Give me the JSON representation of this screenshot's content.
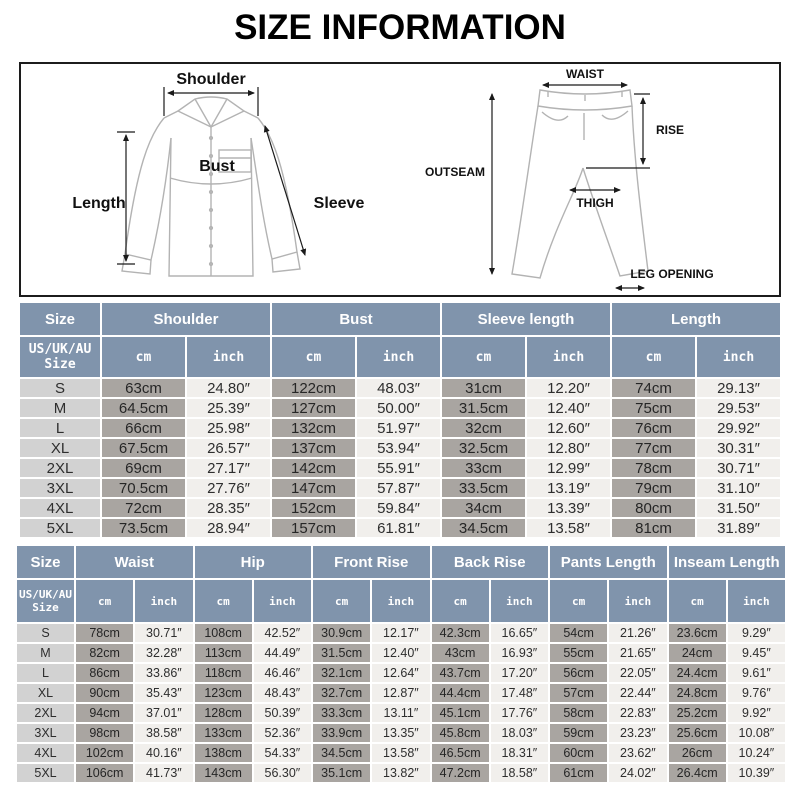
{
  "title": "SIZE INFORMATION",
  "diagram": {
    "shirt": {
      "shoulder": "Shoulder",
      "length": "Length",
      "bust": "Bust",
      "sleeve": "Sleeve"
    },
    "pants": {
      "waist": "WAIST",
      "rise": "RISE",
      "outseam": "OUTSEAM",
      "thigh": "THIGH",
      "leg_opening": "LEG OPENING"
    }
  },
  "colors": {
    "header_blue": "#8094ac",
    "size_col_gray": "#d2d2d2",
    "cm_col_gray": "#a9a5a1",
    "inch_col_light": "#f1efec",
    "title_black": "#000000"
  },
  "tables": [
    {
      "name": "tops-size-table",
      "groups": [
        "Size",
        "Shoulder",
        "Bust",
        "Sleeve length",
        "Length"
      ],
      "size_header": "US/UK/AU Size",
      "unit_headers": [
        "cm",
        "inch"
      ],
      "rows": [
        {
          "size": "S",
          "values": [
            "63cm",
            "24.80″",
            "122cm",
            "48.03″",
            "31cm",
            "12.20″",
            "74cm",
            "29.13″"
          ]
        },
        {
          "size": "M",
          "values": [
            "64.5cm",
            "25.39″",
            "127cm",
            "50.00″",
            "31.5cm",
            "12.40″",
            "75cm",
            "29.53″"
          ]
        },
        {
          "size": "L",
          "values": [
            "66cm",
            "25.98″",
            "132cm",
            "51.97″",
            "32cm",
            "12.60″",
            "76cm",
            "29.92″"
          ]
        },
        {
          "size": "XL",
          "values": [
            "67.5cm",
            "26.57″",
            "137cm",
            "53.94″",
            "32.5cm",
            "12.80″",
            "77cm",
            "30.31″"
          ]
        },
        {
          "size": "2XL",
          "values": [
            "69cm",
            "27.17″",
            "142cm",
            "55.91″",
            "33cm",
            "12.99″",
            "78cm",
            "30.71″"
          ]
        },
        {
          "size": "3XL",
          "values": [
            "70.5cm",
            "27.76″",
            "147cm",
            "57.87″",
            "33.5cm",
            "13.19″",
            "79cm",
            "31.10″"
          ]
        },
        {
          "size": "4XL",
          "values": [
            "72cm",
            "28.35″",
            "152cm",
            "59.84″",
            "34cm",
            "13.39″",
            "80cm",
            "31.50″"
          ]
        },
        {
          "size": "5XL",
          "values": [
            "73.5cm",
            "28.94″",
            "157cm",
            "61.81″",
            "34.5cm",
            "13.58″",
            "81cm",
            "31.89″"
          ]
        }
      ]
    },
    {
      "name": "bottoms-size-table",
      "groups": [
        "Size",
        "Waist",
        "Hip",
        "Front Rise",
        "Back Rise",
        "Pants Length",
        "Inseam Length"
      ],
      "size_header": "US/UK/AU Size",
      "unit_headers": [
        "cm",
        "inch"
      ],
      "rows": [
        {
          "size": "S",
          "values": [
            "78cm",
            "30.71″",
            "108cm",
            "42.52″",
            "30.9cm",
            "12.17″",
            "42.3cm",
            "16.65″",
            "54cm",
            "21.26″",
            "23.6cm",
            "9.29″"
          ]
        },
        {
          "size": "M",
          "values": [
            "82cm",
            "32.28″",
            "113cm",
            "44.49″",
            "31.5cm",
            "12.40″",
            "43cm",
            "16.93″",
            "55cm",
            "21.65″",
            "24cm",
            "9.45″"
          ]
        },
        {
          "size": "L",
          "values": [
            "86cm",
            "33.86″",
            "118cm",
            "46.46″",
            "32.1cm",
            "12.64″",
            "43.7cm",
            "17.20″",
            "56cm",
            "22.05″",
            "24.4cm",
            "9.61″"
          ]
        },
        {
          "size": "XL",
          "values": [
            "90cm",
            "35.43″",
            "123cm",
            "48.43″",
            "32.7cm",
            "12.87″",
            "44.4cm",
            "17.48″",
            "57cm",
            "22.44″",
            "24.8cm",
            "9.76″"
          ]
        },
        {
          "size": "2XL",
          "values": [
            "94cm",
            "37.01″",
            "128cm",
            "50.39″",
            "33.3cm",
            "13.11″",
            "45.1cm",
            "17.76″",
            "58cm",
            "22.83″",
            "25.2cm",
            "9.92″"
          ]
        },
        {
          "size": "3XL",
          "values": [
            "98cm",
            "38.58″",
            "133cm",
            "52.36″",
            "33.9cm",
            "13.35″",
            "45.8cm",
            "18.03″",
            "59cm",
            "23.23″",
            "25.6cm",
            "10.08″"
          ]
        },
        {
          "size": "4XL",
          "values": [
            "102cm",
            "40.16″",
            "138cm",
            "54.33″",
            "34.5cm",
            "13.58″",
            "46.5cm",
            "18.31″",
            "60cm",
            "23.62″",
            "26cm",
            "10.24″"
          ]
        },
        {
          "size": "5XL",
          "values": [
            "106cm",
            "41.73″",
            "143cm",
            "56.30″",
            "35.1cm",
            "13.82″",
            "47.2cm",
            "18.58″",
            "61cm",
            "24.02″",
            "26.4cm",
            "10.39″"
          ]
        }
      ]
    }
  ]
}
